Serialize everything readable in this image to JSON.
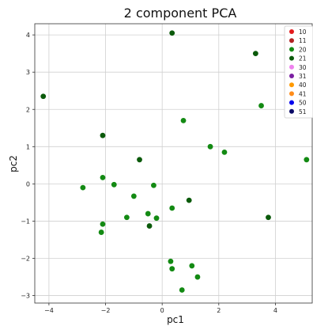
{
  "chart_data": {
    "type": "scatter",
    "title": "2 component PCA",
    "xlabel": "pc1",
    "ylabel": "pc2",
    "xlim": [
      -4.5,
      5.3
    ],
    "ylim": [
      -3.2,
      4.3
    ],
    "xticks": [
      -4,
      -2,
      0,
      2,
      4
    ],
    "yticks": [
      -3,
      -2,
      -1,
      0,
      1,
      2,
      3,
      4
    ],
    "grid": true,
    "legend_position": "top-right",
    "legend": [
      {
        "label": "10",
        "color": "#e41a1c"
      },
      {
        "label": "11",
        "color": "#b22222"
      },
      {
        "label": "20",
        "color": "#138a13"
      },
      {
        "label": "21",
        "color": "#0b5a0b"
      },
      {
        "label": "30",
        "color": "#ee82ee"
      },
      {
        "label": "31",
        "color": "#7b1fa2"
      },
      {
        "label": "40",
        "color": "#ff9900"
      },
      {
        "label": "41",
        "color": "#ff8c1a"
      },
      {
        "label": "50",
        "color": "#0000ee"
      },
      {
        "label": "51",
        "color": "#0a0a66"
      }
    ],
    "series": [
      {
        "name": "20",
        "color": "#138a13",
        "points": [
          [
            -2.8,
            -0.1
          ],
          [
            -2.1,
            0.17
          ],
          [
            -1.7,
            -0.02
          ],
          [
            -2.1,
            -1.08
          ],
          [
            -2.15,
            -1.3
          ],
          [
            -1.25,
            -0.9
          ],
          [
            -1.0,
            -0.33
          ],
          [
            -0.5,
            -0.8
          ],
          [
            -0.2,
            -0.92
          ],
          [
            -0.3,
            -0.04
          ],
          [
            0.75,
            1.7
          ],
          [
            0.35,
            -0.65
          ],
          [
            0.3,
            -2.08
          ],
          [
            0.35,
            -2.28
          ],
          [
            1.05,
            -2.2
          ],
          [
            1.25,
            -2.5
          ],
          [
            0.7,
            -2.85
          ],
          [
            1.7,
            1.0
          ],
          [
            2.2,
            0.85
          ],
          [
            3.5,
            2.1
          ],
          [
            5.1,
            0.65
          ]
        ]
      },
      {
        "name": "21",
        "color": "#0b5a0b",
        "points": [
          [
            0.35,
            4.05
          ],
          [
            -4.2,
            2.35
          ],
          [
            -2.1,
            1.3
          ],
          [
            -0.8,
            0.65
          ],
          [
            -0.45,
            -1.13
          ],
          [
            0.95,
            -0.44
          ],
          [
            3.3,
            3.5
          ],
          [
            3.75,
            -0.9
          ]
        ]
      }
    ]
  }
}
